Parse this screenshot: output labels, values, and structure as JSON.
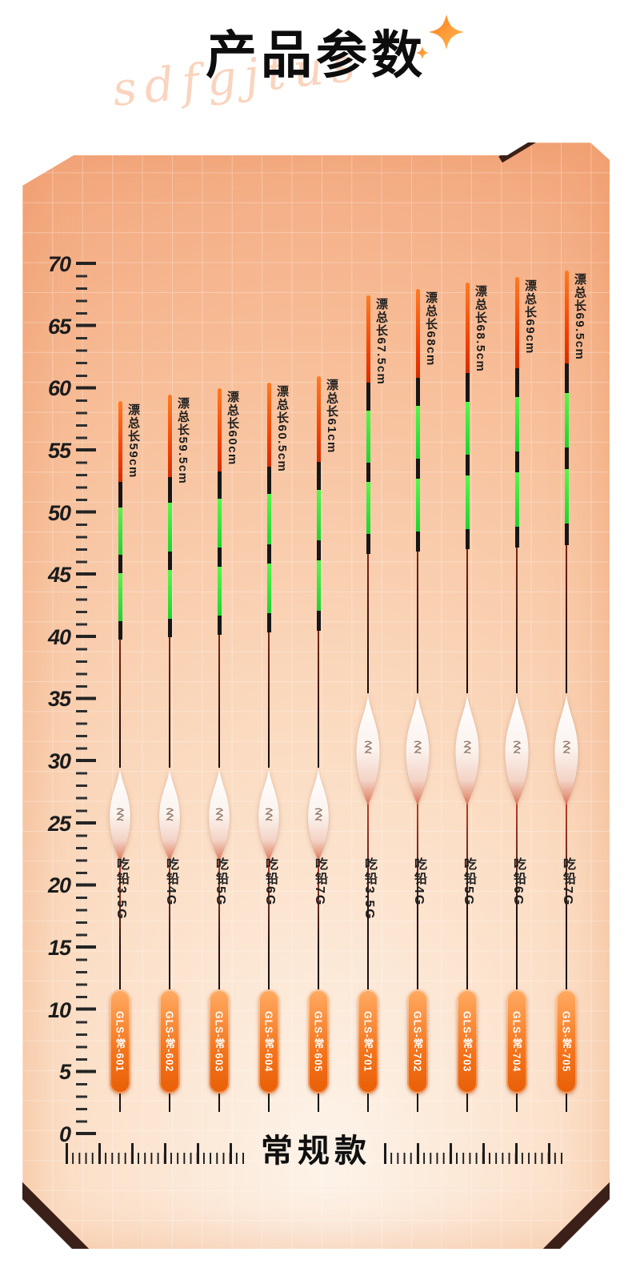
{
  "header": {
    "title": "产品参数",
    "watermark_script": "sdfgjtus",
    "sparkle_icon": "four-point-star"
  },
  "footer": {
    "series_label": "常规款"
  },
  "ruler": {
    "unit": "cm",
    "min": 0,
    "max": 70,
    "step": 5,
    "labels": [
      70,
      65,
      60,
      55,
      50,
      45,
      40,
      35,
      30,
      25,
      20,
      15,
      10,
      5,
      0
    ]
  },
  "colors": {
    "panel_dark": "#f3a87e",
    "panel_light": "#fdf3e9",
    "badge_orange_top": "#ffab63",
    "badge_orange_bottom": "#e85f07",
    "antenna_red": "#f23c02",
    "antenna_green": "#2ee43a",
    "antenna_black": "#161616",
    "corner_wedge": "#3a2018",
    "title_black": "#0d0d0d"
  },
  "chart_data": {
    "type": "table",
    "title": "产品参数",
    "ylabel": "cm",
    "ylim": [
      0,
      70
    ],
    "grid": true,
    "footer_label": "常规款",
    "categories": [
      "GLS-常-601",
      "GLS-常-602",
      "GLS-常-603",
      "GLS-常-604",
      "GLS-常-605",
      "GLS-常-701",
      "GLS-常-702",
      "GLS-常-703",
      "GLS-常-704",
      "GLS-常-705"
    ],
    "series": [
      {
        "name": "漂总长(cm)",
        "values": [
          59,
          59.5,
          60,
          60.5,
          61,
          67.5,
          68,
          68.5,
          69,
          69.5
        ]
      },
      {
        "name": "吃铅(G)",
        "values": [
          3.5,
          4,
          5,
          6,
          7,
          3.5,
          4,
          5,
          6,
          7
        ]
      }
    ],
    "floats": [
      {
        "model": "GLS-常-601",
        "total_length_cm": 59,
        "total_length_label": "漂总长59cm",
        "lead_weight_g": 3.5,
        "lead_label": "吃铅3.5G"
      },
      {
        "model": "GLS-常-602",
        "total_length_cm": 59.5,
        "total_length_label": "漂总长59.5cm",
        "lead_weight_g": 4,
        "lead_label": "吃铅4G"
      },
      {
        "model": "GLS-常-603",
        "total_length_cm": 60,
        "total_length_label": "漂总长60cm",
        "lead_weight_g": 5,
        "lead_label": "吃铅5G"
      },
      {
        "model": "GLS-常-604",
        "total_length_cm": 60.5,
        "total_length_label": "漂总长60.5cm",
        "lead_weight_g": 6,
        "lead_label": "吃铅6G"
      },
      {
        "model": "GLS-常-605",
        "total_length_cm": 61,
        "total_length_label": "漂总长61cm",
        "lead_weight_g": 7,
        "lead_label": "吃铅7G"
      },
      {
        "model": "GLS-常-701",
        "total_length_cm": 67.5,
        "total_length_label": "漂总长67.5cm",
        "lead_weight_g": 3.5,
        "lead_label": "吃铅3.5G"
      },
      {
        "model": "GLS-常-702",
        "total_length_cm": 68,
        "total_length_label": "漂总长68cm",
        "lead_weight_g": 4,
        "lead_label": "吃铅4G"
      },
      {
        "model": "GLS-常-703",
        "total_length_cm": 68.5,
        "total_length_label": "漂总长68.5cm",
        "lead_weight_g": 5,
        "lead_label": "吃铅5G"
      },
      {
        "model": "GLS-常-704",
        "total_length_cm": 69,
        "total_length_label": "漂总长69cm",
        "lead_weight_g": 6,
        "lead_label": "吃铅6G"
      },
      {
        "model": "GLS-常-705",
        "total_length_cm": 69.5,
        "total_length_label": "漂总长69.5cm",
        "lead_weight_g": 7,
        "lead_label": "吃铅7G"
      }
    ]
  }
}
